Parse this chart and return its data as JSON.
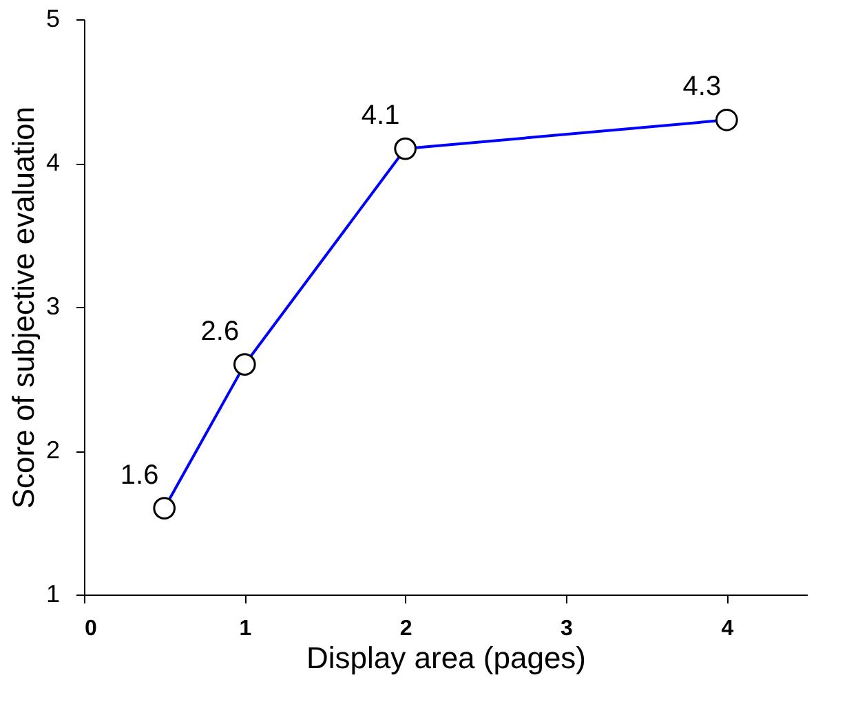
{
  "chart_data": {
    "type": "line",
    "xlabel": "Display area (pages)",
    "ylabel": "Score of subjective evaluation",
    "x": [
      0.5,
      1,
      2,
      4
    ],
    "series": [
      {
        "color": "#0000ff",
        "values": [
          1.6,
          2.6,
          4.1,
          4.3
        ]
      }
    ],
    "xlim": [
      0,
      4.5
    ],
    "xticks": [
      0,
      1,
      2,
      3,
      4
    ],
    "ylim": [
      1,
      5
    ],
    "yticks": [
      1,
      2,
      3,
      4,
      5
    ],
    "grid": false,
    "marker": "circle",
    "line_style": "solid",
    "data_labels": true
  }
}
